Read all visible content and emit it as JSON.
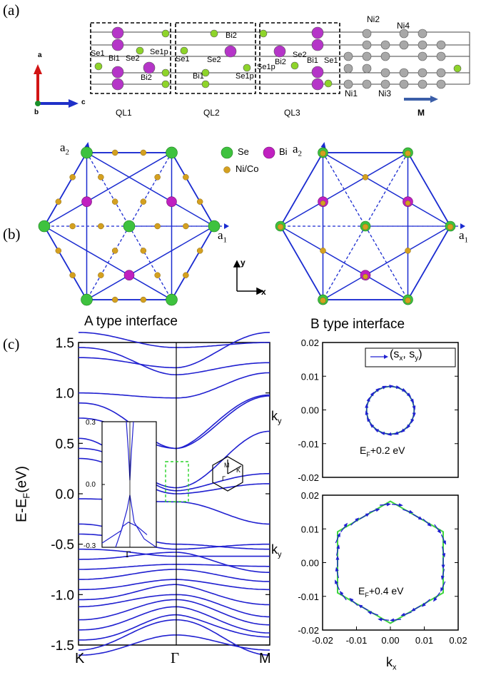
{
  "panel_labels": {
    "a": "(a)",
    "b": "(b)",
    "c": "(c)"
  },
  "crystal": {
    "axes": {
      "a": "a",
      "b": "b",
      "c": "c"
    },
    "quintuple_layers": [
      "QL1",
      "QL2",
      "QL3"
    ],
    "substrate_label": "M",
    "atom_labels": {
      "ql1": [
        "Se1",
        "Bi1",
        "Se2",
        "Se1p",
        "Bi2"
      ],
      "ql2": [
        "Bi2",
        "Se1",
        "Se2",
        "Bi1",
        "Se1p"
      ],
      "ql3": [
        "Se1p",
        "Bi2",
        "Se2",
        "Bi1",
        "Se1"
      ],
      "ni": [
        "Ni2",
        "Ni4",
        "Ni1",
        "Ni3"
      ]
    },
    "colors": {
      "bi": "#b535c8",
      "se": "#8ed42a",
      "ni": "#a8a8a8",
      "arrow": "#3b5ea8"
    }
  },
  "lattice": {
    "legend": {
      "se": "Se",
      "bi": "Bi",
      "nico": "Ni/Co"
    },
    "vectors": {
      "a2": "a",
      "a2_sub": "2",
      "a1": "a",
      "a1_sub": "1"
    },
    "xy": {
      "x": "x",
      "y": "y"
    },
    "colors": {
      "se": "#3ec23e",
      "bi": "#c020c0",
      "nico": "#d4a020",
      "line": "#1a2bd0"
    }
  },
  "headings": {
    "a_type": "A type  interface",
    "b_type": "B type interface"
  },
  "chart_data": [
    {
      "type": "line",
      "title": "A type  interface",
      "xlabel": "",
      "ylabel": "E-E_F(eV)",
      "ylabel_main": "E-E",
      "ylabel_sub": "F",
      "ylabel_tail": "(eV)",
      "ylim": [
        -1.5,
        1.5
      ],
      "yticks": [
        "1.5",
        "1.0",
        "0.5",
        "0.0",
        "-0.5",
        "-1.0",
        "-1.5"
      ],
      "k_points": [
        "K",
        "Γ",
        "M"
      ],
      "inset": {
        "yticks": [
          "0.3",
          "0.0",
          "-0.3"
        ],
        "k_point": "Γ",
        "ylim": [
          -0.3,
          0.3
        ]
      },
      "bz_labels": [
        "M",
        "Γ",
        "K"
      ],
      "band_color": "#2020d0"
    },
    {
      "type": "scatter",
      "title": "",
      "legend": {
        "main": "(s",
        "sub_x": "x",
        "mid": ", s",
        "sub_y": "y",
        "tail": ")"
      },
      "annotation": {
        "main": "E",
        "sub": "F",
        "tail": "+0.2 eV"
      },
      "ylabel": "k_y",
      "ylim": [
        -0.02,
        0.02
      ],
      "yticks": [
        "0.02",
        "0.01",
        "0.00",
        "-0.01",
        "-0.02"
      ],
      "contour": "circle",
      "radius": 0.007
    },
    {
      "type": "scatter",
      "title": "",
      "annotation": {
        "main": "E",
        "sub": "F",
        "tail": "+0.4 eV"
      },
      "xlabel": "k_x",
      "ylabel": "k_y",
      "xlim": [
        -0.02,
        0.02
      ],
      "ylim": [
        -0.02,
        0.02
      ],
      "xticks": [
        "-0.02",
        "-0.01",
        "0.00",
        "0.01",
        "0.02"
      ],
      "yticks": [
        "0.02",
        "0.01",
        "0.00",
        "-0.01",
        "-0.02"
      ],
      "contour": "hexagon",
      "radius": 0.018
    }
  ],
  "spin_labels": {
    "k": "k",
    "y": "y",
    "x": "x"
  }
}
